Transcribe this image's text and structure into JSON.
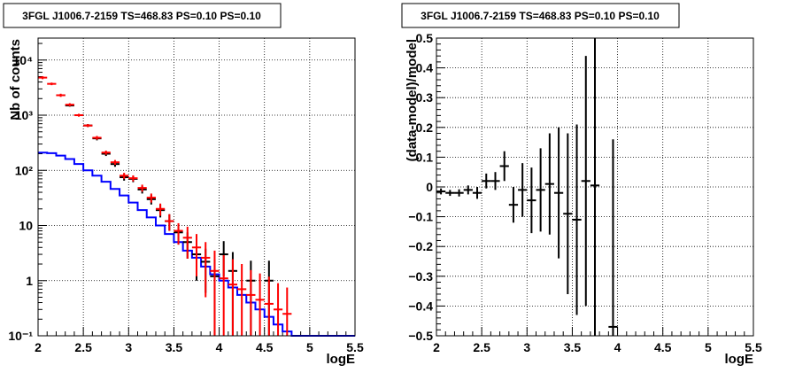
{
  "chart_data": [
    {
      "type": "step-histogram-with-errorbars",
      "title": "3FGL J1006.7-2159 TS=468.83 PS=0.10 PS=0.10",
      "xlabel": "logE",
      "ylabel": "Nb of counts",
      "xlim": [
        2,
        5.5
      ],
      "ylim": [
        0.1,
        25000
      ],
      "yscale": "log",
      "grid": true,
      "x_ticks": [
        "2",
        "2.5",
        "3",
        "3.5",
        "4",
        "4.5",
        "5",
        "5.5"
      ],
      "y_ticks": [
        {
          "value": 0.1,
          "label": "10⁻¹"
        },
        {
          "value": 1,
          "label": "1"
        },
        {
          "value": 10,
          "label": "10"
        },
        {
          "value": 100,
          "label": "10²"
        },
        {
          "value": 1000,
          "label": "10³"
        },
        {
          "value": 10000,
          "label": "10⁴"
        }
      ],
      "series": [
        {
          "color": "#0000ff",
          "style": "step",
          "bin_width": 0.1,
          "x": [
            2.0,
            2.1,
            2.2,
            2.3,
            2.4,
            2.5,
            2.6,
            2.7,
            2.8,
            2.9,
            3.0,
            3.1,
            3.2,
            3.3,
            3.4,
            3.5,
            3.6,
            3.7,
            3.8,
            3.9,
            4.0,
            4.1,
            4.2,
            4.3,
            4.4,
            4.5,
            4.6,
            4.7,
            4.8,
            4.9,
            5.0,
            5.1,
            5.2,
            5.3,
            5.4
          ],
          "y": [
            210,
            205,
            185,
            160,
            130,
            100,
            80,
            62,
            46,
            35,
            26,
            19,
            14,
            10,
            7,
            5,
            3.5,
            2.6,
            1.8,
            1.3,
            1.0,
            0.75,
            0.55,
            0.4,
            0.3,
            0.22,
            0.16,
            0.12,
            0.1,
            0.1,
            0.1,
            0.1,
            0.1,
            0.1,
            0.1
          ]
        },
        {
          "color": "#ff0000",
          "style": "errorbar",
          "x": [
            2.05,
            2.15,
            2.25,
            2.35,
            2.45,
            2.55,
            2.65,
            2.75,
            2.85,
            2.95,
            3.05,
            3.15,
            3.25,
            3.35,
            3.45,
            3.55,
            3.65,
            3.75,
            3.85,
            3.95,
            4.05,
            4.15,
            4.25,
            4.35,
            4.45,
            4.55,
            4.65,
            4.75
          ],
          "y": [
            4800,
            3700,
            2300,
            1550,
            1000,
            650,
            390,
            210,
            140,
            80,
            72,
            48,
            32,
            20,
            12,
            8,
            6,
            4,
            2.6,
            1.5,
            1.1,
            0.85,
            0.7,
            0.55,
            0.45,
            0.38,
            0.3,
            0.25
          ],
          "y_err_low": [
            300,
            200,
            150,
            100,
            60,
            40,
            30,
            18,
            14,
            10,
            9,
            7,
            6,
            5,
            4,
            3.5,
            3.5,
            2.8,
            2.1,
            1.4,
            1.05,
            0.8,
            0.66,
            0.52,
            0.43,
            0.36,
            0.28,
            0.24
          ],
          "y_err_high": [
            300,
            200,
            150,
            100,
            60,
            40,
            30,
            18,
            14,
            10,
            9,
            7,
            6,
            5,
            4,
            3,
            3.5,
            3,
            2.4,
            2,
            1.8,
            1.6,
            1.3,
            1.0,
            0.9,
            0.8,
            0.6,
            0.5
          ]
        },
        {
          "color": "#000000",
          "style": "errorbar",
          "x": [
            2.25,
            2.35,
            2.45,
            2.55,
            2.65,
            2.75,
            2.85,
            2.95,
            3.05,
            3.15,
            3.25,
            3.35,
            3.45,
            3.55,
            3.65,
            3.75,
            3.85,
            3.95,
            4.05,
            4.15,
            4.35,
            4.55
          ],
          "y": [
            2300,
            1500,
            1000,
            650,
            380,
            200,
            130,
            75,
            70,
            45,
            30,
            19,
            12,
            7.5,
            5,
            3,
            2.2,
            1.2,
            3,
            1.5,
            1,
            1
          ],
          "y_err_low": [
            100,
            70,
            50,
            40,
            30,
            18,
            14,
            10,
            9,
            7,
            6,
            5,
            4,
            3,
            2.5,
            2,
            1.6,
            1.19,
            1.8,
            1.4,
            0.99,
            0.99
          ],
          "y_err_high": [
            100,
            70,
            50,
            40,
            30,
            18,
            14,
            10,
            9,
            7,
            6,
            5,
            4,
            3,
            2.5,
            2,
            1.6,
            1.2,
            2.2,
            1.8,
            1.3,
            1.3
          ]
        }
      ]
    },
    {
      "type": "scatter-with-errorbars",
      "title": "3FGL J1006.7-2159 TS=468.83 PS=0.10 PS=0.10",
      "xlabel": "logE",
      "ylabel": "(data-model)/model",
      "xlim": [
        2,
        5.5
      ],
      "ylim": [
        -0.5,
        0.5
      ],
      "yscale": "linear",
      "grid": true,
      "x_ticks": [
        "2",
        "2.5",
        "3",
        "3.5",
        "4",
        "4.5",
        "5",
        "5.5"
      ],
      "y_ticks": [
        "−0.5",
        "−0.4",
        "−0.3",
        "−0.2",
        "−0.1",
        "0",
        "0.1",
        "0.2",
        "0.3",
        "0.4",
        "0.5"
      ],
      "series": [
        {
          "color": "#000000",
          "style": "errorbar",
          "x": [
            2.05,
            2.15,
            2.25,
            2.35,
            2.45,
            2.55,
            2.65,
            2.75,
            2.85,
            2.95,
            3.05,
            3.15,
            3.25,
            3.35,
            3.45,
            3.55,
            3.65,
            3.75,
            3.95
          ],
          "y": [
            -0.015,
            -0.02,
            -0.02,
            -0.01,
            -0.02,
            0.02,
            0.02,
            0.07,
            -0.06,
            -0.01,
            -0.045,
            -0.01,
            0.01,
            -0.02,
            -0.09,
            -0.11,
            0.02,
            0.005,
            -0.47
          ],
          "y_err": [
            0.01,
            0.01,
            0.012,
            0.015,
            0.02,
            0.025,
            0.03,
            0.05,
            0.06,
            0.09,
            0.11,
            0.14,
            0.17,
            0.22,
            0.27,
            0.32,
            0.42,
            0.55,
            0.63
          ]
        }
      ]
    }
  ]
}
